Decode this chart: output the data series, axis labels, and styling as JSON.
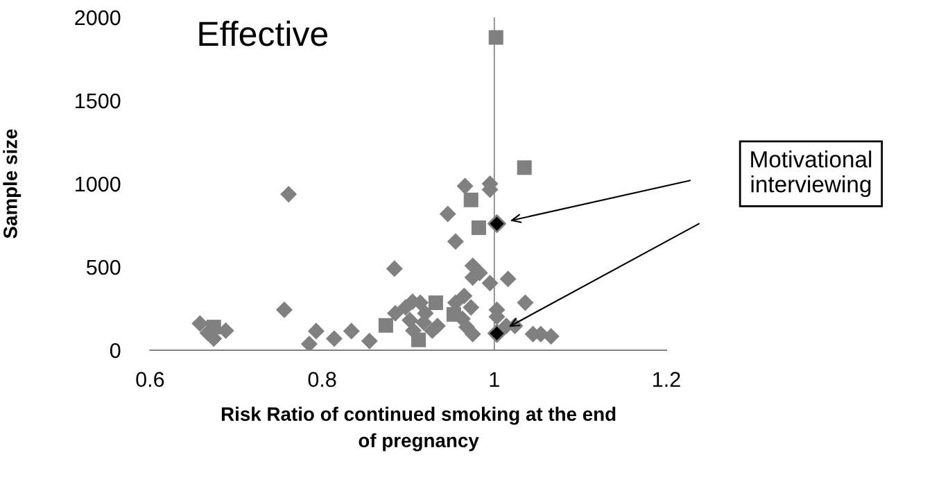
{
  "chart_data": {
    "type": "scatter",
    "title": "Effective",
    "xlabel": "Risk Ratio of continued smoking at the end\nof pregnancy",
    "ylabel": "Sample size",
    "xlim": [
      0.6,
      1.2
    ],
    "xticks": [
      0.6,
      0.8,
      1,
      1.2
    ],
    "ylim": [
      0,
      2000
    ],
    "yticks": [
      0,
      500,
      1000,
      1500,
      2000
    ],
    "grid": false,
    "legend": false,
    "ref_lines": [
      {
        "axis": "x",
        "value": 1,
        "color": "#808080"
      }
    ],
    "annotations": [
      "Motivational\ninterviewing"
    ],
    "series": [
      {
        "color": "#808080",
        "marker": "diamond",
        "x": [
          0.761,
          0.756,
          0.658,
          0.674,
          0.688,
          0.667,
          0.793,
          0.785,
          0.814,
          0.834,
          0.855,
          0.884,
          0.885,
          0.897,
          0.905,
          0.914,
          0.906,
          0.918,
          0.928,
          0.934,
          0.92,
          0.902,
          0.955,
          0.965,
          0.973,
          0.963,
          0.968,
          0.975,
          0.975,
          0.975,
          0.983,
          0.995,
          1.016,
          1.003,
          1.003,
          1.014,
          1.024,
          1.036,
          1.045,
          1.054,
          1.066,
          0.946,
          0.955,
          0.966,
          0.995,
          0.995
        ],
        "values": [
          937,
          243,
          160,
          70,
          118,
          104,
          115,
          37,
          70,
          115,
          55,
          490,
          222,
          257,
          292,
          285,
          118,
          167,
          118,
          146,
          222,
          180,
          285,
          326,
          257,
          188,
          139,
          97,
          507,
          437,
          465,
          403,
          428,
          243,
          201,
          146,
          146,
          285,
          97,
          97,
          83,
          819,
          653,
          986,
          1000,
          965
        ]
      },
      {
        "color": "#808080",
        "marker": "square",
        "x": [
          0.674,
          0.874,
          0.932,
          0.912,
          0.953,
          0.973,
          0.982,
          1.002,
          1.035
        ],
        "values": [
          139,
          149,
          285,
          62,
          215,
          903,
          736,
          1879,
          1097
        ]
      },
      {
        "color": "#000000",
        "marker": "diamond",
        "x": [
          1.003,
          1.003
        ],
        "values": [
          760,
          101
        ]
      }
    ]
  }
}
